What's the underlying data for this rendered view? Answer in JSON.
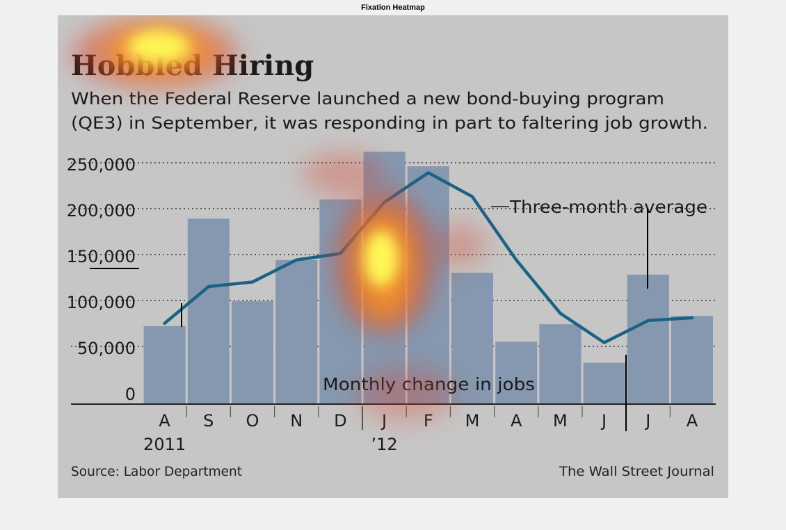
{
  "figure": {
    "title": "Fixation Heatmap"
  },
  "chart_data": {
    "type": "bar",
    "title": "Hobbled Hiring",
    "subtitle_lines": [
      "When the Federal Reserve launched a new bond-buying program",
      "(QE3) in September, it was responding in part to faltering job growth."
    ],
    "categories": [
      "A",
      "S",
      "O",
      "N",
      "D",
      "J",
      "F",
      "M",
      "A",
      "M",
      "J",
      "J",
      "A"
    ],
    "year_labels": [
      {
        "text": "2011",
        "category_index": 0
      },
      {
        "text": "’12",
        "category_index": 5
      }
    ],
    "ylim": [
      0,
      250000
    ],
    "yticks": [
      {
        "value": 0,
        "label": "0"
      },
      {
        "value": 50000,
        "label": "50,000"
      },
      {
        "value": 100000,
        "label": "100,000"
      },
      {
        "value": 150000,
        "label": "150,000"
      },
      {
        "value": 200000,
        "label": "200,000"
      },
      {
        "value": 250000,
        "label": "250,000"
      }
    ],
    "series": [
      {
        "name": "Monthly change in jobs",
        "kind": "bar",
        "color": "#8598b0",
        "values": [
          85000,
          202000,
          112000,
          157000,
          223000,
          275000,
          259000,
          143000,
          68000,
          87000,
          45000,
          141000,
          96000
        ]
      },
      {
        "name": "Three-month average",
        "kind": "line",
        "color": "#1c6285",
        "values": [
          88000,
          128000,
          133000,
          157000,
          164000,
          220000,
          252000,
          226000,
          157000,
          99000,
          67000,
          91000,
          94000
        ]
      }
    ],
    "grid": "dotted horizontal",
    "source": "Source: Labor Department",
    "credit": "The Wall Street Journal",
    "heatmap_colors": {
      "hot": "#ffff5a",
      "mid": "#ff9a1e",
      "cool": "#dc3c28"
    }
  }
}
